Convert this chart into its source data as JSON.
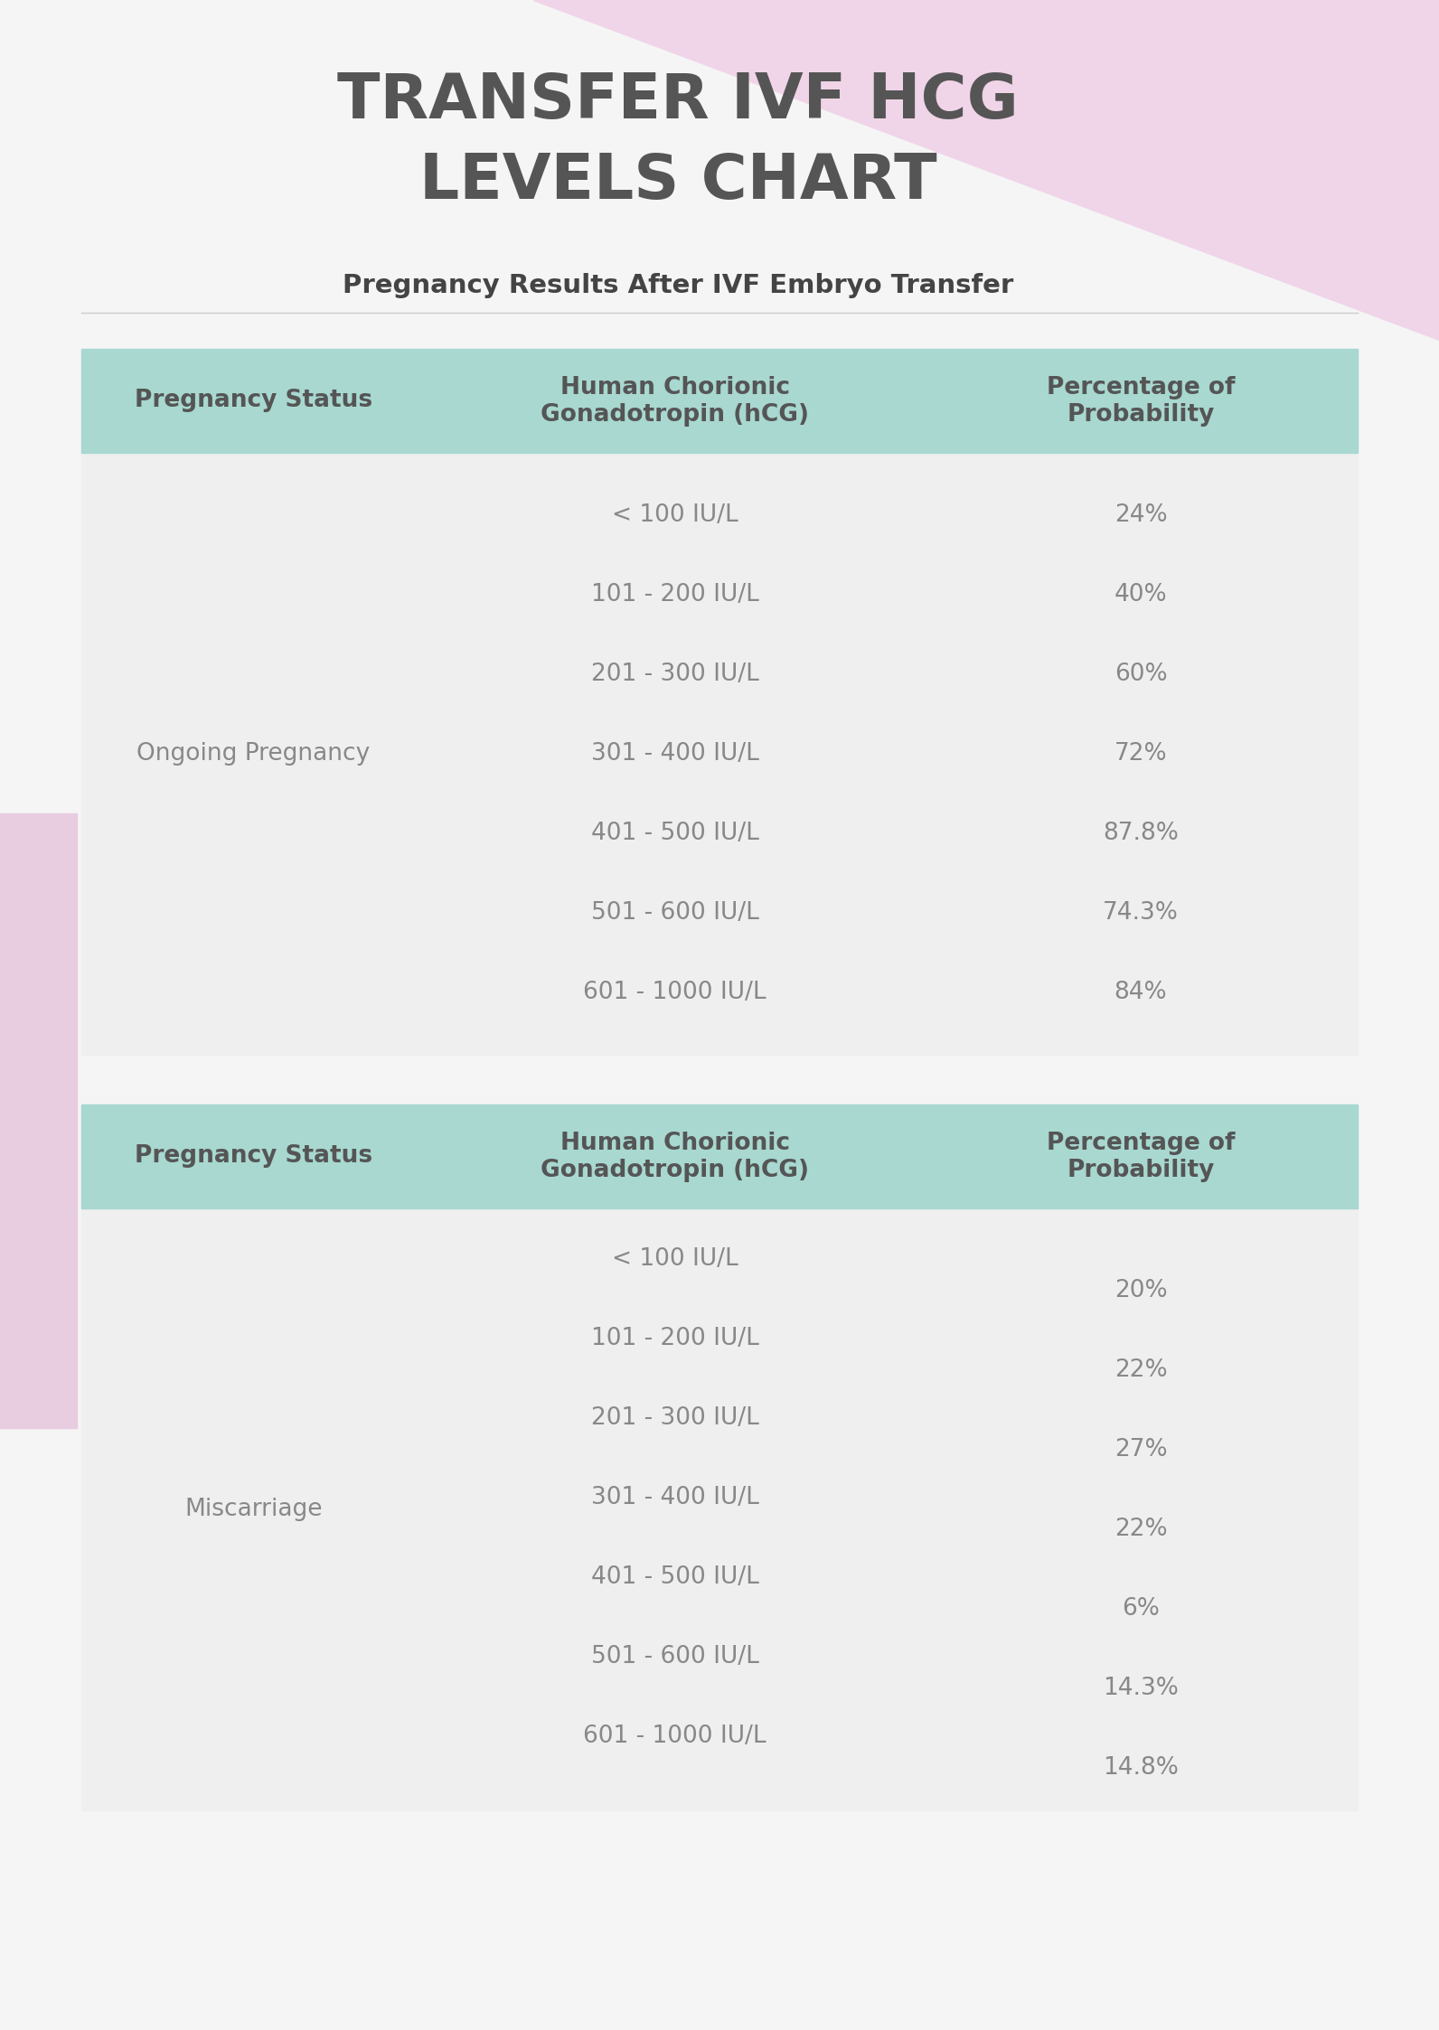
{
  "title": "TRANSFER IVF HCG\nLEVELS CHART",
  "subtitle": "Pregnancy Results After IVF Embryo Transfer",
  "bg_color": "#f5f5f5",
  "page_bg": "#f5f5f5",
  "header_bg": "#a8d8d0",
  "table_row_bg": "#efefef",
  "pink_shape_color": "#f0d4e8",
  "pink_side_color": "#e8cce0",
  "title_color": "#555555",
  "subtitle_color": "#444444",
  "header_text_color": "#555555",
  "cell_text_color": "#888888",
  "col_headers": [
    "Pregnancy Status",
    "Human Chorionic\nGonadotropin (hCG)",
    "Percentage of\nProbability"
  ],
  "section1": {
    "status": "Ongoing Pregnancy",
    "hcg_ranges": [
      "< 100 IU/L",
      "101 - 200 IU/L",
      "201 - 300 IU/L",
      "301 - 400 IU/L",
      "401 - 500 IU/L",
      "501 - 600 IU/L",
      "601 - 1000 IU/L"
    ],
    "percentages": [
      "24%",
      "40%",
      "60%",
      "72%",
      "87.8%",
      "74.3%",
      "84%"
    ]
  },
  "section2": {
    "status": "Miscarriage",
    "hcg_ranges": [
      "< 100 IU/L",
      "101 - 200 IU/L",
      "201 - 300 IU/L",
      "301 - 400 IU/L",
      "401 - 500 IU/L",
      "501 - 600 IU/L",
      "601 - 1000 IU/L"
    ],
    "percentages": [
      "20%",
      "22%",
      "27%",
      "22%",
      "6%",
      "14.3%",
      "14.8%"
    ]
  }
}
